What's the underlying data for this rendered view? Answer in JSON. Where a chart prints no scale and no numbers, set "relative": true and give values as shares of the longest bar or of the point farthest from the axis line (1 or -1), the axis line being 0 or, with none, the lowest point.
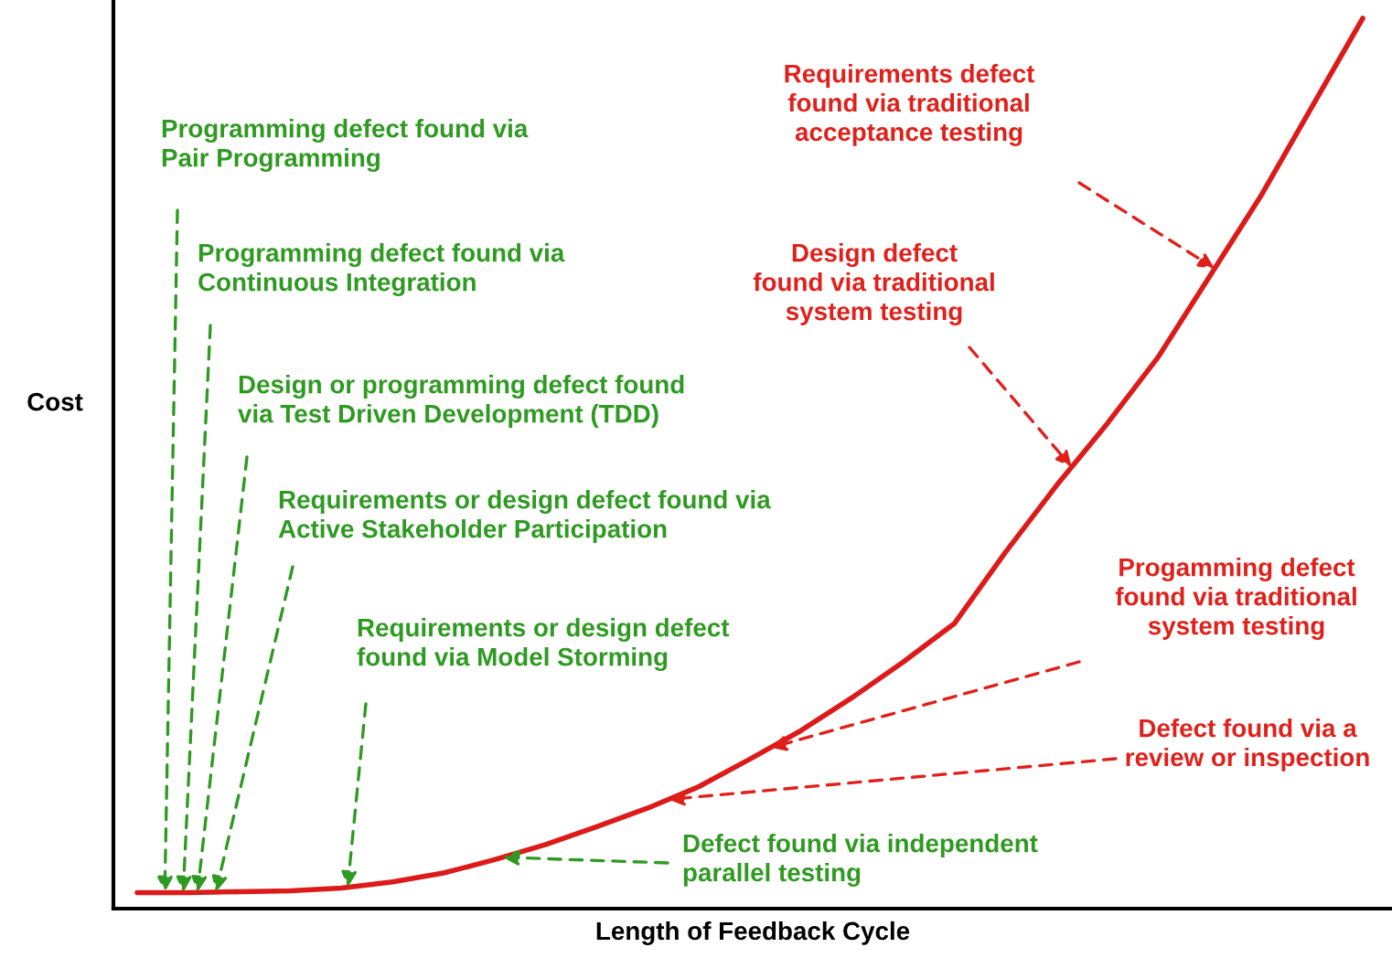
{
  "chart_data": {
    "type": "line",
    "relative": true,
    "tick_labels": false,
    "xlabel": "Length of Feedback Cycle",
    "ylabel": "Cost",
    "categories": [
      null,
      null,
      null,
      null,
      null,
      null,
      null,
      null,
      null,
      null,
      null,
      null,
      null,
      null,
      null,
      null,
      null,
      null,
      null,
      null,
      null,
      null,
      null,
      null,
      null
    ],
    "series": [
      {
        "color": "#dd1a1a",
        "values": [
          0.018,
          0.018,
          0.019,
          0.02,
          0.023,
          0.03,
          0.04,
          0.055,
          0.072,
          0.092,
          0.113,
          0.137,
          0.168,
          0.2,
          0.237,
          0.277,
          0.32,
          0.4,
          0.475,
          0.545,
          0.62,
          0.71,
          0.8,
          0.9,
          1.0
        ]
      }
    ],
    "annotations": [
      "Programming defect found via\nPair Programming",
      "Programming defect found via\nContinuous Integration",
      "Design or programming defect found\nvia Test Driven Development (TDD)",
      "Requirements or design defect found via\nActive Stakeholder Participation",
      "Requirements or design defect\nfound via Model Storming",
      "Defect found via independent\nparallel testing",
      "Requirements defect\nfound via traditional\nacceptance testing",
      "Design defect\nfound via traditional\nsystem testing",
      "Progamming defect\nfound via traditional\nsystem testing",
      "Defect found via a\nreview or inspection"
    ]
  }
}
